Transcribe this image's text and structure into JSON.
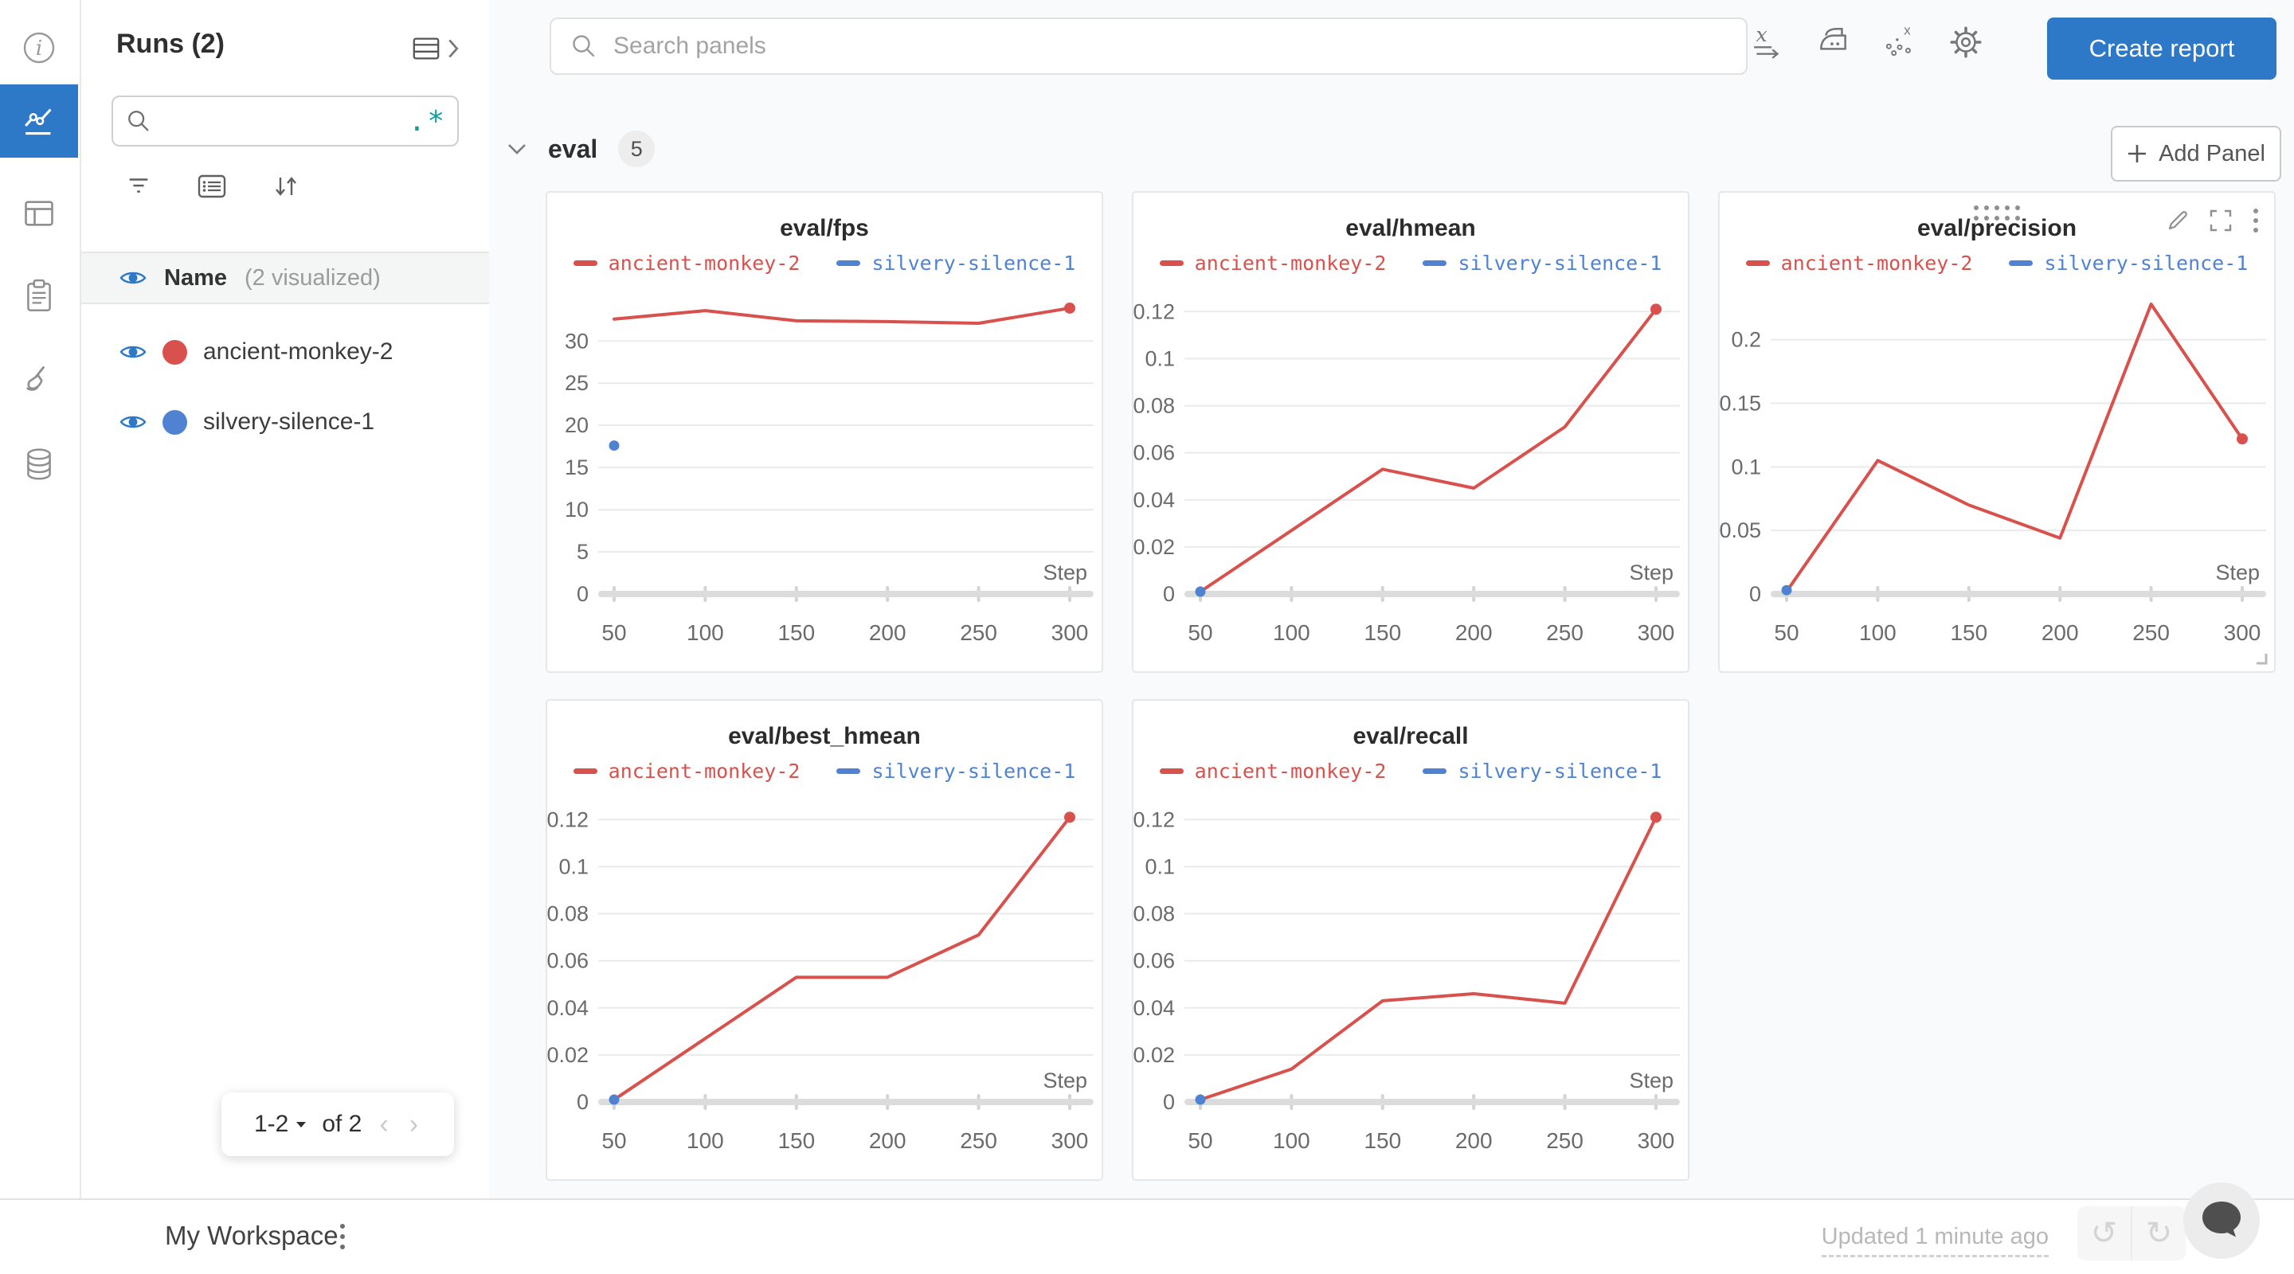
{
  "runs_panel": {
    "title": "Runs (2)",
    "search_placeholder": "",
    "regex_label": ".*",
    "visualized": {
      "label": "Name",
      "note": "(2 visualized)"
    },
    "runs": [
      {
        "name": "ancient-monkey-2",
        "color": "#d9514c"
      },
      {
        "name": "silvery-silence-1",
        "color": "#4f83d1"
      }
    ],
    "pagination": {
      "range": "1-2",
      "of": "of 2"
    }
  },
  "topbar": {
    "search_placeholder": "Search panels",
    "create_report": "Create report"
  },
  "section": {
    "title": "eval",
    "panel_count": "5",
    "add_panel": "Add Panel"
  },
  "footer": {
    "workspace_name": "My Workspace",
    "updated": "Updated 1 minute ago"
  },
  "colors": {
    "accent_blue": "#2e78c8",
    "run_red": "#d9514c",
    "run_blue": "#4f83d1",
    "regex_teal": "#0f9e9e"
  },
  "chart_data": [
    {
      "type": "line",
      "title": "eval/fps",
      "xlabel": "Step",
      "grid": true,
      "legend_position": "top",
      "xlim": [
        50,
        300
      ],
      "x_ticks": [
        50,
        100,
        150,
        200,
        250,
        300
      ],
      "ylim": [
        0,
        35.5
      ],
      "y_ticks": [
        "0",
        "5",
        "10",
        "15",
        "20",
        "25",
        "30"
      ],
      "series": [
        {
          "name": "ancient-monkey-2",
          "color": "#d9514c",
          "x": [
            50,
            100,
            150,
            200,
            250,
            300
          ],
          "y": [
            32.6,
            33.6,
            32.4,
            32.3,
            32.1,
            33.9
          ],
          "end_dot": true
        },
        {
          "name": "silvery-silence-1",
          "color": "#4f83d1",
          "x": [
            50
          ],
          "y": [
            17.6
          ]
        }
      ]
    },
    {
      "type": "line",
      "title": "eval/hmean",
      "xlabel": "Step",
      "grid": true,
      "legend_position": "top",
      "xlim": [
        50,
        300
      ],
      "x_ticks": [
        50,
        100,
        150,
        200,
        250,
        300
      ],
      "ylim": [
        0,
        0.1272
      ],
      "y_ticks": [
        "0",
        "0.02",
        "0.04",
        "0.06",
        "0.08",
        "0.1",
        "0.12"
      ],
      "series": [
        {
          "name": "ancient-monkey-2",
          "color": "#d9514c",
          "x": [
            50,
            100,
            150,
            200,
            250,
            300
          ],
          "y": [
            0.001,
            0.027,
            0.053,
            0.045,
            0.071,
            0.121
          ],
          "end_dot": true
        },
        {
          "name": "silvery-silence-1",
          "color": "#4f83d1",
          "x": [
            50
          ],
          "y": [
            0.001
          ]
        }
      ]
    },
    {
      "type": "line",
      "title": "eval/precision",
      "xlabel": "Step",
      "grid": true,
      "legend_position": "top",
      "hover_controls": true,
      "xlim": [
        50,
        300
      ],
      "x_ticks": [
        50,
        100,
        150,
        200,
        250,
        300
      ],
      "ylim": [
        0,
        0.2355
      ],
      "y_ticks": [
        "0",
        "0.05",
        "0.1",
        "0.15",
        "0.2"
      ],
      "series": [
        {
          "name": "ancient-monkey-2",
          "color": "#d9514c",
          "x": [
            50,
            100,
            150,
            200,
            250,
            300
          ],
          "y": [
            0.002,
            0.105,
            0.07,
            0.044,
            0.228,
            0.122
          ],
          "end_dot": true
        },
        {
          "name": "silvery-silence-1",
          "color": "#4f83d1",
          "x": [
            50
          ],
          "y": [
            0.003
          ]
        }
      ]
    },
    {
      "type": "line",
      "title": "eval/best_hmean",
      "xlabel": "Step",
      "grid": true,
      "legend_position": "top",
      "xlim": [
        50,
        300
      ],
      "x_ticks": [
        50,
        100,
        150,
        200,
        250,
        300
      ],
      "ylim": [
        0,
        0.1272
      ],
      "y_ticks": [
        "0",
        "0.02",
        "0.04",
        "0.06",
        "0.08",
        "0.1",
        "0.12"
      ],
      "series": [
        {
          "name": "ancient-monkey-2",
          "color": "#d9514c",
          "x": [
            50,
            100,
            150,
            200,
            250,
            300
          ],
          "y": [
            0.001,
            0.027,
            0.053,
            0.053,
            0.071,
            0.121
          ],
          "end_dot": true
        },
        {
          "name": "silvery-silence-1",
          "color": "#4f83d1",
          "x": [
            50
          ],
          "y": [
            0.001
          ]
        }
      ]
    },
    {
      "type": "line",
      "title": "eval/recall",
      "xlabel": "Step",
      "grid": true,
      "legend_position": "top",
      "xlim": [
        50,
        300
      ],
      "x_ticks": [
        50,
        100,
        150,
        200,
        250,
        300
      ],
      "ylim": [
        0,
        0.1272
      ],
      "y_ticks": [
        "0",
        "0.02",
        "0.04",
        "0.06",
        "0.08",
        "0.1",
        "0.12"
      ],
      "series": [
        {
          "name": "ancient-monkey-2",
          "color": "#d9514c",
          "x": [
            50,
            100,
            150,
            200,
            250,
            300
          ],
          "y": [
            0.001,
            0.014,
            0.043,
            0.046,
            0.042,
            0.121
          ],
          "end_dot": true
        },
        {
          "name": "silvery-silence-1",
          "color": "#4f83d1",
          "x": [
            50
          ],
          "y": [
            0.001
          ]
        }
      ]
    }
  ]
}
